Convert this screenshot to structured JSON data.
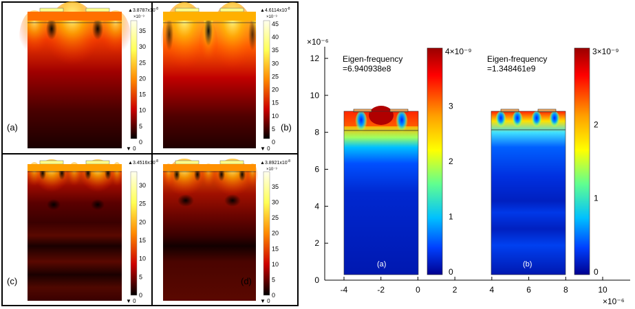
{
  "left_figure": {
    "panels": [
      {
        "id": "a",
        "label": "(a)",
        "max_label": "3.8787x10",
        "max_exp": "-8",
        "scale_exp": "×10⁻⁹",
        "ticks": [
          "35",
          "30",
          "25",
          "20",
          "15",
          "10",
          "5",
          "0"
        ],
        "min_label": "0"
      },
      {
        "id": "b",
        "label": "(b)",
        "max_label": "4.6114x10",
        "max_exp": "-8",
        "scale_exp": "×10⁻⁹",
        "ticks": [
          "45",
          "40",
          "35",
          "30",
          "25",
          "20",
          "15",
          "10",
          "5",
          "0"
        ],
        "min_label": "0"
      },
      {
        "id": "c",
        "label": "(c)",
        "max_label": "3.4516x10",
        "max_exp": "-8",
        "scale_exp": "",
        "ticks": [
          "30",
          "25",
          "20",
          "15",
          "10",
          "5",
          "0"
        ],
        "min_label": "0"
      },
      {
        "id": "d",
        "label": "(d)",
        "max_label": "3.8921x10",
        "max_exp": "-8",
        "scale_exp": "×10⁻⁹",
        "ticks": [
          "35",
          "30",
          "25",
          "20",
          "15",
          "10",
          "5",
          "0"
        ],
        "min_label": "0"
      }
    ]
  },
  "right_figure": {
    "y_exponent": "×10⁻⁶",
    "x_exponent": "×10⁻⁶",
    "y_ticks": [
      "12",
      "10",
      "8",
      "6",
      "4",
      "2",
      "0"
    ],
    "x_ticks": [
      "-4",
      "-2",
      "0",
      "2",
      "4",
      "6",
      "8",
      "10"
    ],
    "mode_a": {
      "title": "Eigen-frequency",
      "value": "=6.940938e8",
      "label": "(a)",
      "scale_max": "4×10⁻⁹",
      "ticks": [
        "3",
        "2",
        "1",
        "0"
      ]
    },
    "mode_b": {
      "title": "Eigen-frequency",
      "value": "=1.348461e9",
      "label": "(b)",
      "scale_max": "3×10⁻⁹",
      "ticks": [
        "2",
        "1",
        "0"
      ]
    }
  },
  "colors": {
    "hot_low": "#2a0000",
    "hot_high": "#ffff66",
    "jet_low": "#0000a0",
    "jet_high": "#a00000"
  }
}
